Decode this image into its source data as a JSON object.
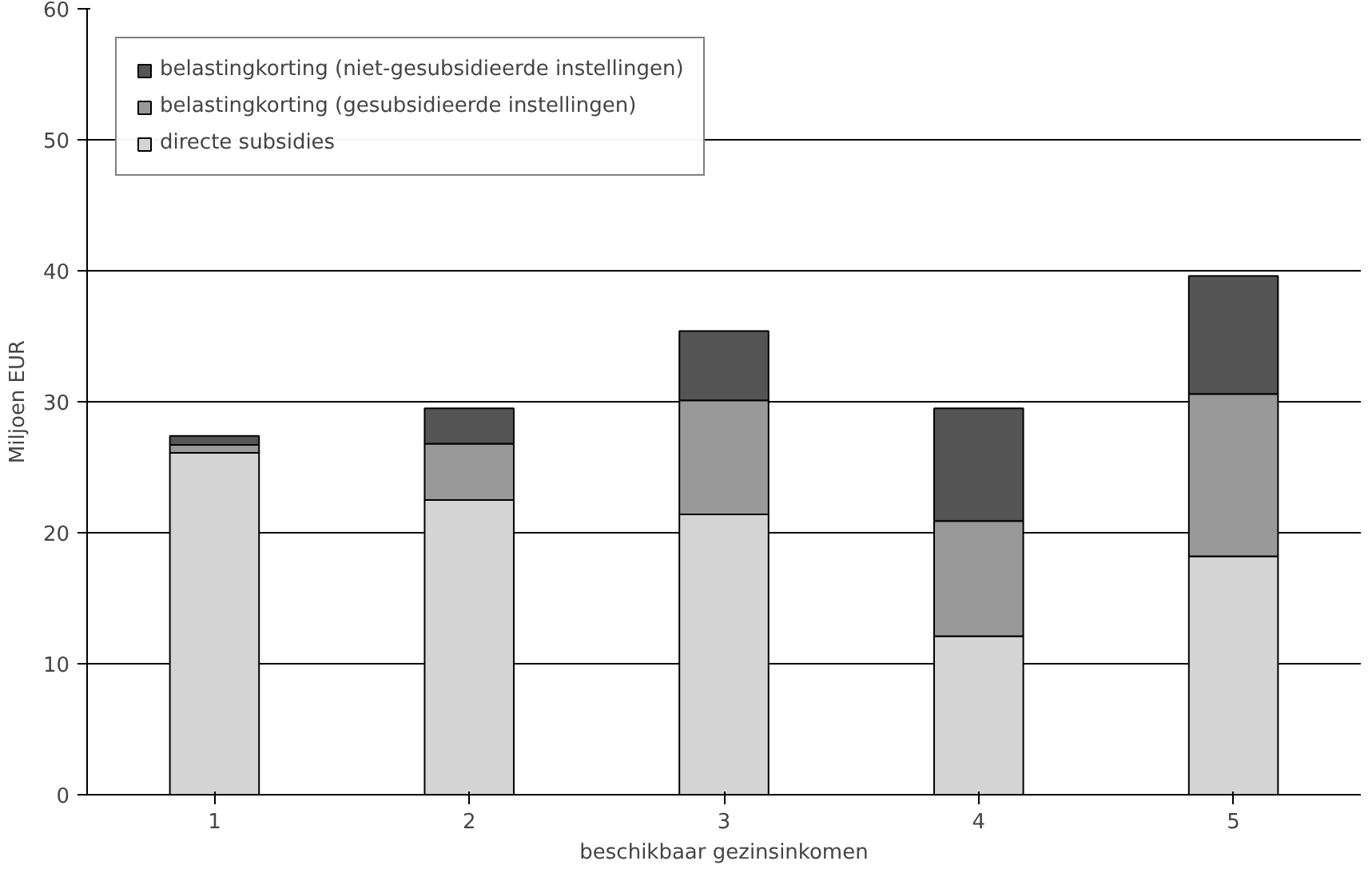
{
  "chart_data": {
    "type": "bar",
    "stacked": true,
    "xlabel": "beschikbaar gezinsinkomen",
    "ylabel": "Miljoen EUR",
    "categories": [
      "1",
      "2",
      "3",
      "4",
      "5"
    ],
    "series": [
      {
        "name": "directe subsidies",
        "color": "#d4d4d4",
        "values": [
          26.1,
          22.5,
          21.4,
          12.1,
          18.2
        ]
      },
      {
        "name": "belastingkorting (gesubsidieerde instellingen)",
        "color": "#999999",
        "values": [
          0.6,
          4.3,
          8.7,
          8.8,
          12.4
        ]
      },
      {
        "name": "belastingkorting (niet-gesubsidieerde instellingen)",
        "color": "#555555",
        "values": [
          0.7,
          2.7,
          5.3,
          8.6,
          9.0
        ]
      }
    ],
    "ylim": [
      0,
      60
    ],
    "yticks": [
      0,
      10,
      20,
      30,
      40,
      50,
      60
    ],
    "grid": "y",
    "legend": "top left"
  }
}
